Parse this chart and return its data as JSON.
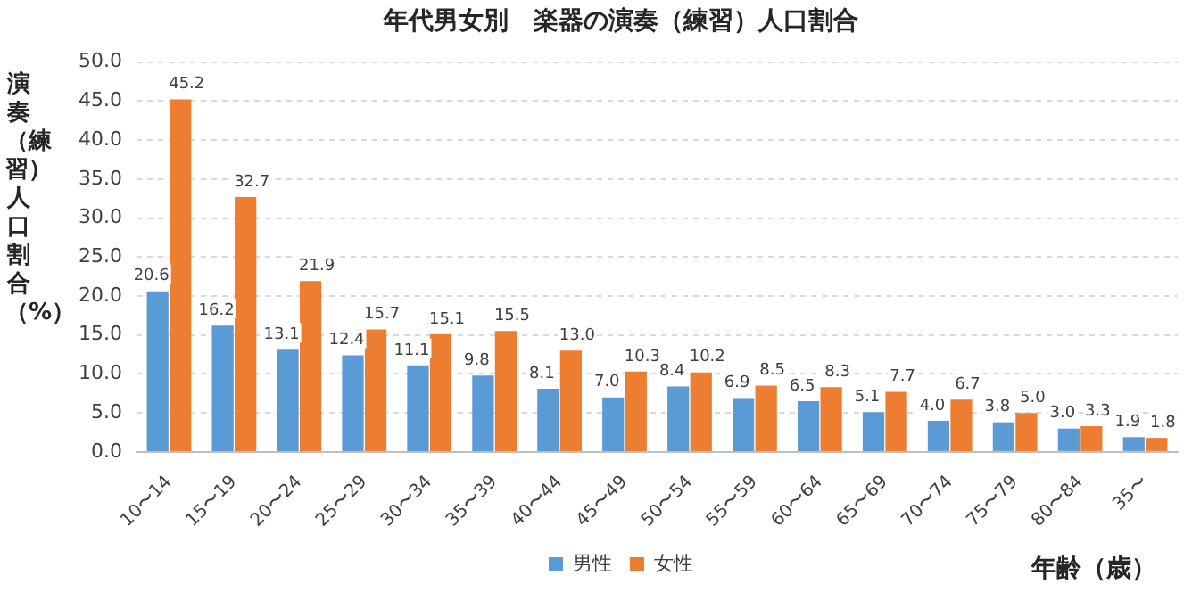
{
  "chart_data": {
    "type": "bar",
    "title": "年代男女別　楽器の演奏（練習）人口割合",
    "xlabel": "年齢（歳）",
    "ylabel": "演奏（練習）人口割合（%）",
    "categories": [
      "10〜14",
      "15〜19",
      "20〜24",
      "25〜29",
      "30〜34",
      "35〜39",
      "40〜44",
      "45〜49",
      "50〜54",
      "55〜59",
      "60〜64",
      "65〜69",
      "70〜74",
      "75〜79",
      "80〜84",
      "35〜"
    ],
    "series": [
      {
        "name": "男性",
        "color": "#5b9bd5",
        "values": [
          20.6,
          16.2,
          13.1,
          12.4,
          11.1,
          9.8,
          8.1,
          7.0,
          8.4,
          6.9,
          6.5,
          5.1,
          4.0,
          3.8,
          3.0,
          1.9
        ],
        "value_labels": [
          "20.6",
          "16.2",
          "13.1",
          "12.4",
          "11.1",
          "9.8",
          "8.1",
          "7.0",
          "8.4",
          "6.9",
          "6.5",
          "5.1",
          "4.0",
          "3.8",
          "3.0",
          "1.9"
        ]
      },
      {
        "name": "女性",
        "color": "#ed7d31",
        "values": [
          45.2,
          32.7,
          21.9,
          15.7,
          15.1,
          15.5,
          13.0,
          10.3,
          10.2,
          8.5,
          8.3,
          7.7,
          6.7,
          5.0,
          3.3,
          1.8
        ],
        "value_labels": [
          "45.2",
          "32.7",
          "21.9",
          "15.7",
          "15.1",
          "15.5",
          "13.0",
          "10.3",
          "10.2",
          "8.5",
          "8.3",
          "7.7",
          "6.7",
          "5.0",
          "3.3",
          "1.8"
        ]
      }
    ],
    "ylim": [
      0,
      50
    ],
    "yticks": [
      {
        "value": 0,
        "label": "0.0"
      },
      {
        "value": 5,
        "label": "5.0"
      },
      {
        "value": 10,
        "label": "10.0"
      },
      {
        "value": 15,
        "label": "15.0"
      },
      {
        "value": 20,
        "label": "20.0"
      },
      {
        "value": 25,
        "label": "25.0"
      },
      {
        "value": 30,
        "label": "30.0"
      },
      {
        "value": 35,
        "label": "35.0"
      },
      {
        "value": 40,
        "label": "40.0"
      },
      {
        "value": 45,
        "label": "45.0"
      },
      {
        "value": 50,
        "label": "50.0"
      }
    ],
    "grid": "y",
    "legend": "bottom"
  }
}
